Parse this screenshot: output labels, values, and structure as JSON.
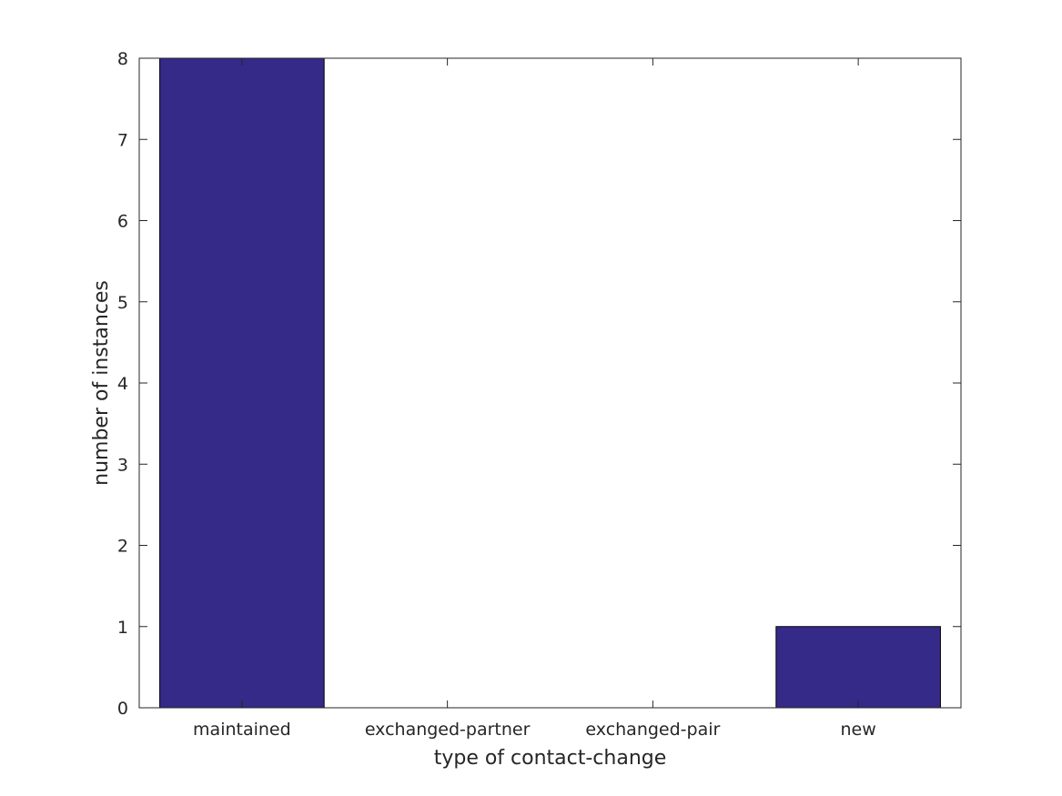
{
  "chart_data": {
    "type": "bar",
    "categories": [
      "maintained",
      "exchanged-partner",
      "exchanged-pair",
      "new"
    ],
    "values": [
      8,
      0,
      0,
      1
    ],
    "xlabel": "type of contact-change",
    "ylabel": "number of instances",
    "ylim": [
      0,
      8
    ],
    "yticks": [
      "0",
      "1",
      "2",
      "3",
      "4",
      "5",
      "6",
      "7",
      "8"
    ],
    "grid": false,
    "bar_color": "#352a87"
  }
}
